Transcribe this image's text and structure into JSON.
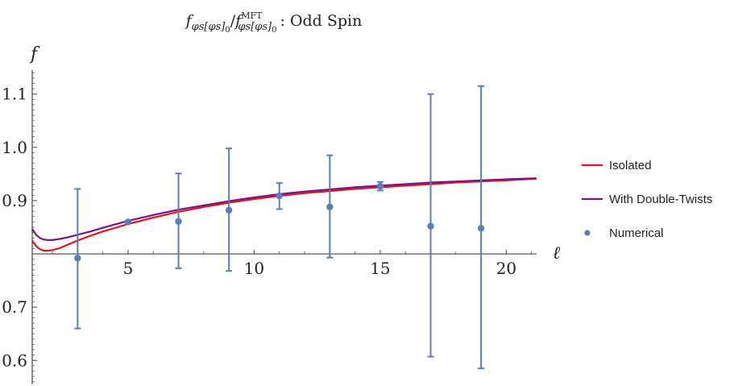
{
  "chart_data": {
    "type": "line",
    "title": {
      "num_base": "f",
      "num_sub": "φs[φs]",
      "num_sub0": "0",
      "slash": "/",
      "den_base": "f",
      "den_sup": "MFT",
      "den_sub": "φs[φs]",
      "den_sub0": "0",
      "suffix": ": Odd Spin"
    },
    "xlabel": "ℓ",
    "ylabel": "f",
    "xlim": [
      1.2,
      21.2
    ],
    "ylim": [
      0.555,
      1.145
    ],
    "x_axis_crossing_y": 0.8,
    "x_ticks": [
      5,
      10,
      15,
      20
    ],
    "x_tick_labels": [
      "5",
      "10",
      "15",
      "20"
    ],
    "y_ticks": [
      0.6,
      0.7,
      0.9,
      1.0,
      1.1
    ],
    "y_tick_labels": [
      "0.6",
      "0.7",
      "0.9",
      "1.0",
      "1.1"
    ],
    "legend_position": "right",
    "series": [
      {
        "name": "Isolated",
        "kind": "line",
        "color": "#e8141b",
        "x": [
          1.2,
          1.35,
          1.5,
          1.65,
          1.8,
          2.0,
          2.3,
          2.6,
          3.0,
          3.5,
          4,
          5,
          6,
          7,
          8,
          9,
          10,
          11,
          12,
          13,
          14,
          15,
          16,
          17,
          18,
          19,
          20,
          21.2
        ],
        "y": [
          0.825,
          0.815,
          0.809,
          0.806,
          0.806,
          0.807,
          0.811,
          0.817,
          0.825,
          0.834,
          0.842,
          0.856,
          0.868,
          0.879,
          0.888,
          0.896,
          0.903,
          0.909,
          0.914,
          0.918,
          0.922,
          0.925,
          0.928,
          0.931,
          0.934,
          0.936,
          0.938,
          0.941
        ]
      },
      {
        "name": "With Double-Twists",
        "kind": "line",
        "color": "#7a1487",
        "x": [
          1.2,
          1.35,
          1.5,
          1.65,
          1.8,
          2.0,
          2.3,
          2.6,
          3.0,
          3.5,
          4,
          5,
          6,
          7,
          8,
          9,
          10,
          11,
          12,
          13,
          14,
          15,
          16,
          17,
          18,
          19,
          20,
          21.2
        ],
        "y": [
          0.847,
          0.836,
          0.83,
          0.827,
          0.826,
          0.826,
          0.828,
          0.831,
          0.836,
          0.842,
          0.849,
          0.862,
          0.873,
          0.883,
          0.891,
          0.899,
          0.906,
          0.912,
          0.917,
          0.921,
          0.925,
          0.928,
          0.931,
          0.934,
          0.936,
          0.938,
          0.94,
          0.942
        ]
      },
      {
        "name": "Numerical",
        "kind": "scatter",
        "color": "#5a7fb8",
        "x": [
          3,
          5,
          7,
          9,
          11,
          13,
          15,
          17,
          19
        ],
        "y": [
          0.792,
          0.86,
          0.861,
          0.882,
          0.909,
          0.888,
          0.927,
          0.852,
          0.848
        ],
        "err_low": [
          0.66,
          0.858,
          0.773,
          0.768,
          0.884,
          0.793,
          0.919,
          0.607,
          0.585
        ],
        "err_high": [
          0.922,
          0.862,
          0.951,
          0.998,
          0.933,
          0.985,
          0.935,
          1.1,
          1.115
        ]
      }
    ]
  }
}
